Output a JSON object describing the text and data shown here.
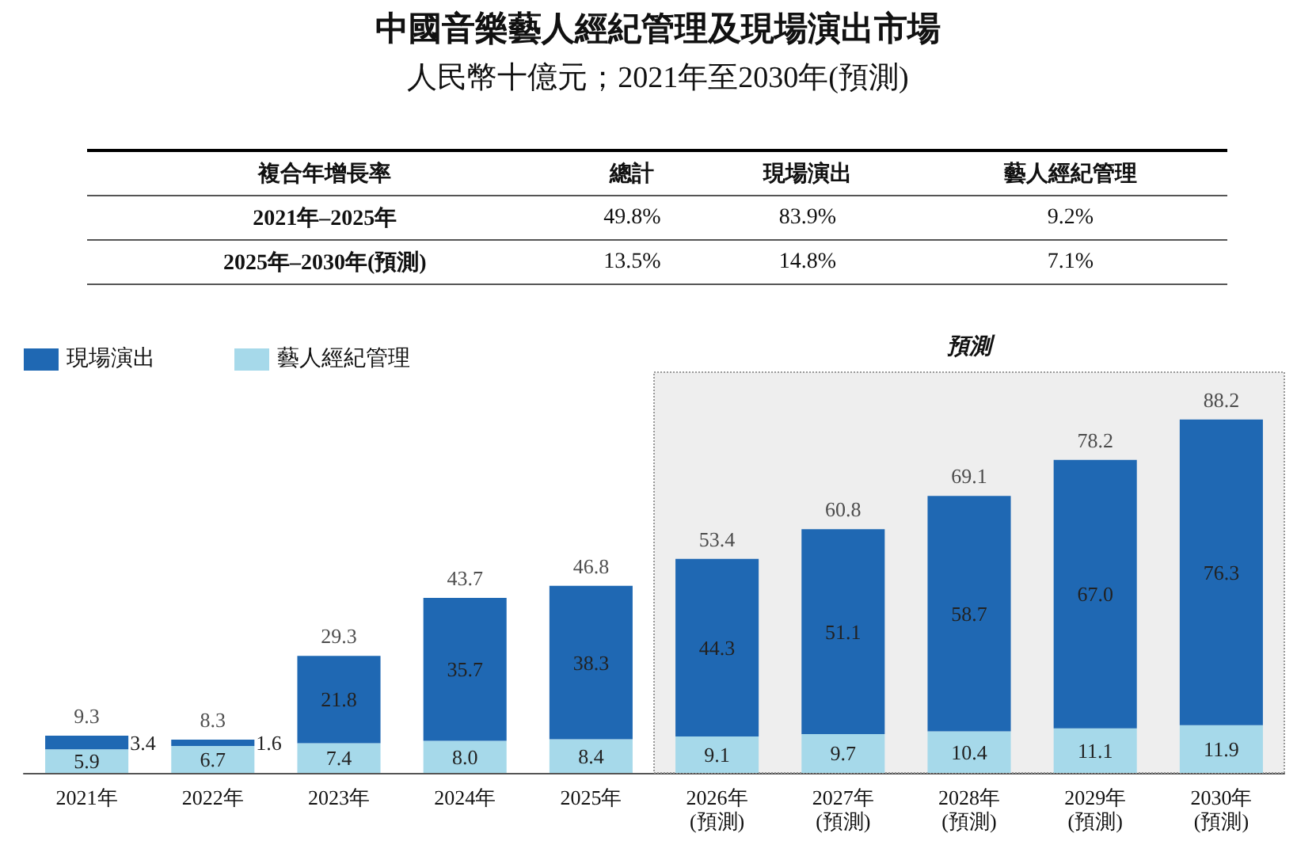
{
  "chart_data": {
    "type": "bar",
    "title": "中國音樂藝人經紀管理及現場演出市場",
    "subtitle": "人民幣十億元；2021年至2030年(預測)",
    "annotations": [
      "複合年增長率",
      "總計",
      "現場演出",
      "藝人經紀管理",
      "2021年–2025年",
      "49.8%",
      "83.9%",
      "9.2%",
      "2025年–2030年(預測)",
      "13.5%",
      "14.8%",
      "7.1%"
    ],
    "categories": [
      "2021年",
      "2022年",
      "2023年",
      "2024年",
      "2025年",
      "2026年\n(預測)",
      "2027年\n(預測)",
      "2028年\n(預測)",
      "2029年\n(預測)",
      "2030年\n(預測)"
    ],
    "stacked": true,
    "series": [
      {
        "name": "藝人經紀管理",
        "color": "#a6d9ea",
        "values": [
          5.9,
          6.7,
          7.4,
          8.0,
          8.4,
          9.1,
          9.7,
          10.4,
          11.1,
          11.9
        ],
        "value_labels": [
          "5.9",
          "6.7",
          "7.4",
          "8.0",
          "8.4",
          "9.1",
          "9.7",
          "10.4",
          "11.1",
          "11.9"
        ]
      },
      {
        "name": "現場演出",
        "color": "#1f68b3",
        "values": [
          3.4,
          1.6,
          21.8,
          35.7,
          38.3,
          44.3,
          51.1,
          58.7,
          67.0,
          76.3
        ],
        "value_labels": [
          "3.4",
          "1.6",
          "21.8",
          "35.7",
          "38.3",
          "44.3",
          "51.1",
          "58.7",
          "67.0",
          "76.3"
        ]
      }
    ],
    "totals": [
      "9.3",
      "8.3",
      "29.3",
      "43.7",
      "46.8",
      "53.4",
      "60.8",
      "69.1",
      "78.2",
      "88.2"
    ],
    "bands": [
      {
        "axis": "x",
        "from": "2026年\n(預測)",
        "to": "2030年\n(預測)",
        "label": "預測",
        "color": "#eeeeee"
      }
    ],
    "legend": "top left",
    "tick_labels": "x"
  }
}
